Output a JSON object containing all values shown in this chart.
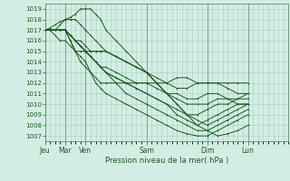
{
  "xlabel": "Pression niveau de la mer( hPa )",
  "day_labels": [
    "Jeu",
    "Mar",
    "Ven",
    "Sam",
    "Dim",
    "Lun"
  ],
  "day_x": [
    0,
    24,
    48,
    120,
    192,
    240
  ],
  "ylim": [
    1006.5,
    1019.5
  ],
  "yticks": [
    1007,
    1008,
    1009,
    1010,
    1011,
    1012,
    1013,
    1014,
    1015,
    1016,
    1017,
    1018,
    1019
  ],
  "xlim": [
    0,
    288
  ],
  "bg_color": "#d4ede4",
  "grid_color": "#a8cfc0",
  "line_color": "#1a5c20",
  "ensemble_lines": [
    [
      [
        0,
        1017
      ],
      [
        6,
        1017
      ],
      [
        12,
        1017
      ],
      [
        18,
        1017
      ],
      [
        24,
        1017
      ],
      [
        30,
        1016.5
      ],
      [
        36,
        1016
      ],
      [
        42,
        1016
      ],
      [
        48,
        1015.5
      ],
      [
        54,
        1015
      ],
      [
        60,
        1015
      ],
      [
        66,
        1015
      ],
      [
        72,
        1015
      ],
      [
        84,
        1014.5
      ],
      [
        96,
        1014
      ],
      [
        108,
        1013.5
      ],
      [
        120,
        1013
      ],
      [
        132,
        1012
      ],
      [
        144,
        1011
      ],
      [
        156,
        1010
      ],
      [
        168,
        1009
      ],
      [
        180,
        1008
      ],
      [
        192,
        1008.5
      ],
      [
        204,
        1009
      ],
      [
        216,
        1009.5
      ],
      [
        228,
        1010
      ],
      [
        240,
        1010
      ]
    ],
    [
      [
        0,
        1017
      ],
      [
        6,
        1017
      ],
      [
        12,
        1017
      ],
      [
        18,
        1017
      ],
      [
        24,
        1017
      ],
      [
        30,
        1016
      ],
      [
        36,
        1015
      ],
      [
        42,
        1014.5
      ],
      [
        48,
        1014
      ],
      [
        54,
        1013
      ],
      [
        60,
        1012
      ],
      [
        66,
        1011.5
      ],
      [
        72,
        1011
      ],
      [
        84,
        1010.5
      ],
      [
        96,
        1010
      ],
      [
        108,
        1009.5
      ],
      [
        120,
        1009
      ],
      [
        132,
        1008.5
      ],
      [
        144,
        1008
      ],
      [
        156,
        1007.5
      ],
      [
        168,
        1007.2
      ],
      [
        180,
        1007
      ],
      [
        192,
        1007
      ],
      [
        204,
        1007.5
      ],
      [
        216,
        1008
      ],
      [
        228,
        1008.5
      ],
      [
        240,
        1009
      ]
    ],
    [
      [
        0,
        1017
      ],
      [
        6,
        1017.2
      ],
      [
        12,
        1017.5
      ],
      [
        18,
        1017.8
      ],
      [
        24,
        1018
      ],
      [
        30,
        1018.2
      ],
      [
        36,
        1018.5
      ],
      [
        42,
        1019
      ],
      [
        48,
        1019
      ],
      [
        54,
        1019
      ],
      [
        60,
        1018.5
      ],
      [
        66,
        1018
      ],
      [
        72,
        1017
      ],
      [
        84,
        1016
      ],
      [
        96,
        1015
      ],
      [
        108,
        1014
      ],
      [
        120,
        1013
      ],
      [
        132,
        1012
      ],
      [
        144,
        1011
      ],
      [
        156,
        1010
      ],
      [
        168,
        1009
      ],
      [
        180,
        1008.5
      ],
      [
        192,
        1008
      ],
      [
        204,
        1008.5
      ],
      [
        216,
        1009
      ],
      [
        228,
        1009.5
      ],
      [
        240,
        1010
      ]
    ],
    [
      [
        0,
        1017
      ],
      [
        6,
        1017
      ],
      [
        12,
        1017
      ],
      [
        18,
        1017.5
      ],
      [
        24,
        1018
      ],
      [
        30,
        1018
      ],
      [
        36,
        1018
      ],
      [
        42,
        1017.5
      ],
      [
        48,
        1017
      ],
      [
        54,
        1016.5
      ],
      [
        60,
        1016
      ],
      [
        66,
        1015.5
      ],
      [
        72,
        1015
      ],
      [
        84,
        1014.5
      ],
      [
        96,
        1014
      ],
      [
        108,
        1013.5
      ],
      [
        120,
        1013
      ],
      [
        132,
        1012.5
      ],
      [
        144,
        1012
      ],
      [
        156,
        1011.5
      ],
      [
        168,
        1011.5
      ],
      [
        180,
        1012
      ],
      [
        192,
        1012
      ],
      [
        204,
        1012
      ],
      [
        216,
        1011.5
      ],
      [
        228,
        1011
      ],
      [
        240,
        1011
      ]
    ],
    [
      [
        0,
        1017
      ],
      [
        6,
        1017
      ],
      [
        12,
        1017
      ],
      [
        18,
        1017
      ],
      [
        24,
        1017
      ],
      [
        30,
        1016.5
      ],
      [
        36,
        1016
      ],
      [
        42,
        1015.5
      ],
      [
        48,
        1015
      ],
      [
        54,
        1014.5
      ],
      [
        60,
        1014
      ],
      [
        66,
        1013.5
      ],
      [
        72,
        1013
      ],
      [
        84,
        1012.5
      ],
      [
        96,
        1012
      ],
      [
        108,
        1011.5
      ],
      [
        120,
        1011
      ],
      [
        132,
        1010.5
      ],
      [
        144,
        1010
      ],
      [
        156,
        1009.5
      ],
      [
        168,
        1009
      ],
      [
        180,
        1009
      ],
      [
        192,
        1009.5
      ],
      [
        204,
        1010
      ],
      [
        216,
        1010
      ],
      [
        228,
        1010.5
      ],
      [
        240,
        1011
      ]
    ],
    [
      [
        0,
        1017
      ],
      [
        6,
        1017
      ],
      [
        12,
        1017
      ],
      [
        18,
        1017
      ],
      [
        24,
        1017
      ],
      [
        30,
        1016.5
      ],
      [
        36,
        1016
      ],
      [
        42,
        1015.5
      ],
      [
        48,
        1015
      ],
      [
        54,
        1014.5
      ],
      [
        60,
        1014
      ],
      [
        66,
        1013.5
      ],
      [
        72,
        1013.5
      ],
      [
        84,
        1013
      ],
      [
        96,
        1012.5
      ],
      [
        108,
        1012
      ],
      [
        120,
        1012
      ],
      [
        132,
        1011.5
      ],
      [
        144,
        1011
      ],
      [
        156,
        1011
      ],
      [
        168,
        1010.5
      ],
      [
        180,
        1010.5
      ],
      [
        192,
        1011
      ],
      [
        204,
        1011
      ],
      [
        216,
        1010.5
      ],
      [
        228,
        1010
      ],
      [
        240,
        1010
      ]
    ],
    [
      [
        0,
        1017
      ],
      [
        6,
        1017
      ],
      [
        12,
        1016.5
      ],
      [
        18,
        1016
      ],
      [
        24,
        1016
      ],
      [
        30,
        1015.5
      ],
      [
        36,
        1015
      ],
      [
        42,
        1015
      ],
      [
        48,
        1015
      ],
      [
        54,
        1014.5
      ],
      [
        60,
        1014
      ],
      [
        66,
        1013.5
      ],
      [
        72,
        1013
      ],
      [
        84,
        1012.5
      ],
      [
        96,
        1012
      ],
      [
        108,
        1011.5
      ],
      [
        120,
        1011
      ],
      [
        132,
        1010.5
      ],
      [
        144,
        1010
      ],
      [
        156,
        1009
      ],
      [
        168,
        1008.5
      ],
      [
        180,
        1008
      ],
      [
        192,
        1007.5
      ],
      [
        204,
        1007
      ],
      [
        216,
        1007.2
      ],
      [
        228,
        1007.5
      ],
      [
        240,
        1008
      ]
    ],
    [
      [
        0,
        1017
      ],
      [
        6,
        1017
      ],
      [
        12,
        1017
      ],
      [
        18,
        1017
      ],
      [
        24,
        1017
      ],
      [
        30,
        1016
      ],
      [
        36,
        1015
      ],
      [
        42,
        1014
      ],
      [
        48,
        1013.5
      ],
      [
        54,
        1013
      ],
      [
        60,
        1012.5
      ],
      [
        66,
        1012
      ],
      [
        72,
        1012
      ],
      [
        84,
        1012
      ],
      [
        96,
        1012
      ],
      [
        108,
        1012
      ],
      [
        120,
        1012
      ],
      [
        132,
        1012
      ],
      [
        144,
        1012
      ],
      [
        156,
        1012.5
      ],
      [
        168,
        1012.5
      ],
      [
        180,
        1012
      ],
      [
        192,
        1012
      ],
      [
        204,
        1012
      ],
      [
        216,
        1012
      ],
      [
        228,
        1012
      ],
      [
        240,
        1012
      ]
    ],
    [
      [
        0,
        1017
      ],
      [
        6,
        1017
      ],
      [
        12,
        1017
      ],
      [
        18,
        1017
      ],
      [
        24,
        1017
      ],
      [
        30,
        1016.5
      ],
      [
        36,
        1016
      ],
      [
        42,
        1015.5
      ],
      [
        48,
        1015
      ],
      [
        54,
        1014.5
      ],
      [
        60,
        1014
      ],
      [
        66,
        1013.5
      ],
      [
        72,
        1013
      ],
      [
        84,
        1012
      ],
      [
        96,
        1011
      ],
      [
        108,
        1010.5
      ],
      [
        120,
        1010
      ],
      [
        132,
        1009.5
      ],
      [
        144,
        1009
      ],
      [
        156,
        1008.5
      ],
      [
        168,
        1008
      ],
      [
        180,
        1007.5
      ],
      [
        192,
        1007.5
      ],
      [
        204,
        1008
      ],
      [
        216,
        1008.5
      ],
      [
        228,
        1009
      ],
      [
        240,
        1009.5
      ]
    ],
    [
      [
        0,
        1017
      ],
      [
        6,
        1017
      ],
      [
        12,
        1017
      ],
      [
        18,
        1017
      ],
      [
        24,
        1017
      ],
      [
        30,
        1016.5
      ],
      [
        36,
        1016
      ],
      [
        42,
        1015.5
      ],
      [
        48,
        1015
      ],
      [
        54,
        1015
      ],
      [
        60,
        1015
      ],
      [
        66,
        1015
      ],
      [
        72,
        1015
      ],
      [
        84,
        1014.5
      ],
      [
        96,
        1014
      ],
      [
        108,
        1013.5
      ],
      [
        120,
        1013
      ],
      [
        132,
        1012
      ],
      [
        144,
        1011
      ],
      [
        156,
        1010.5
      ],
      [
        168,
        1010
      ],
      [
        180,
        1010
      ],
      [
        192,
        1010
      ],
      [
        204,
        1010.5
      ],
      [
        216,
        1010.5
      ],
      [
        228,
        1010.5
      ],
      [
        240,
        1010.5
      ]
    ]
  ]
}
